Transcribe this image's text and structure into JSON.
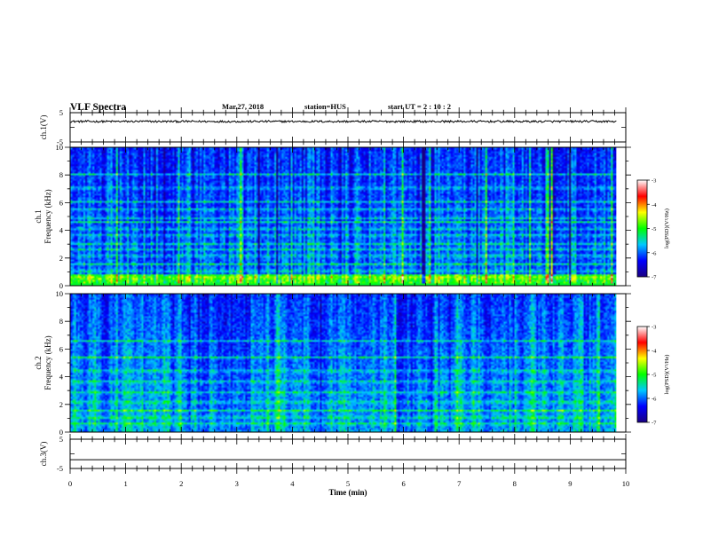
{
  "header": {
    "title": "VLF Spectra",
    "date": "Mar.27, 2018",
    "station": "station=HUS",
    "start": "start  UT  =   2  : 10 : 2"
  },
  "chart_data": [
    {
      "type": "line",
      "ylabel": "ch.1(V)",
      "ylim": [
        -5,
        5
      ],
      "yticks": [
        "5",
        "-5"
      ],
      "xlim": [
        0,
        10
      ],
      "series": [
        {
          "baseline": 2.0,
          "amplitude": 0.35
        }
      ]
    },
    {
      "type": "heatmap",
      "channel": "ch.1",
      "ylabel": "Frequency  (kHz)",
      "ylim": [
        0,
        10
      ],
      "yticks": [
        "0",
        "2",
        "4",
        "6",
        "8",
        "10"
      ],
      "data_xrange": [
        0,
        9.83
      ],
      "cbar_label": "log(PSD)(V²/Hz)",
      "cbar_ticks": [
        "-3",
        "-4",
        "-5",
        "-6",
        "-7"
      ],
      "clim": [
        -7,
        -3
      ],
      "colorscale": [
        "#1a0080",
        "#0000ff",
        "#00c8ff",
        "#00ff00",
        "#ffff00",
        "#ff0000",
        "#ffffff"
      ],
      "line_freqs": [
        0.2,
        0.45,
        0.6,
        1.0,
        1.5,
        2.1,
        2.6,
        3.0,
        3.6,
        4.1,
        4.6,
        4.9,
        5.5,
        6.1,
        7.1,
        8.1
      ]
    },
    {
      "type": "heatmap",
      "channel": "ch.2",
      "ylabel": "Frequency  (kHz)",
      "ylim": [
        0,
        10
      ],
      "yticks": [
        "0",
        "2",
        "4",
        "6",
        "8",
        "10"
      ],
      "data_xrange": [
        0,
        9.83
      ],
      "cbar_label": "log(PSD)(V²/Hz)",
      "cbar_ticks": [
        "-3",
        "-4",
        "-5",
        "-6",
        "-7"
      ],
      "clim": [
        -7,
        -3
      ],
      "colorscale": [
        "#1a0080",
        "#0000ff",
        "#00c8ff",
        "#00ff00",
        "#ffff00",
        "#ff0000",
        "#ffffff"
      ],
      "line_freqs": [
        0.5,
        1.0,
        1.5,
        2.1,
        2.8,
        3.6,
        4.4,
        5.4,
        6.6
      ]
    },
    {
      "type": "line",
      "ylabel": "ch.3(V)",
      "ylim": [
        -5,
        5
      ],
      "yticks": [
        "5",
        "-5"
      ],
      "xlim": [
        0,
        10
      ],
      "series": [
        {
          "baseline": -2.0,
          "amplitude": 0
        }
      ]
    }
  ],
  "xaxis": {
    "label": "Time  (min)",
    "ticks": [
      "0",
      "1",
      "2",
      "3",
      "4",
      "5",
      "6",
      "7",
      "8",
      "9",
      "10"
    ],
    "range": [
      0,
      10
    ]
  }
}
